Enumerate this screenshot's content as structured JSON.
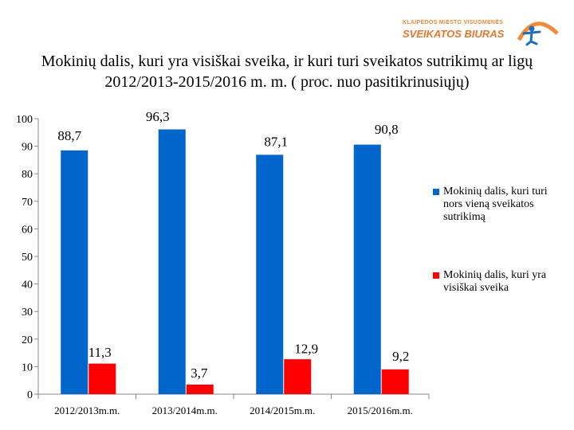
{
  "logo": {
    "line1": "KLAIPĖDOS MIESTO VISUOMENĖS",
    "line2": "SVEIKATOS BIURAS"
  },
  "chart_data": {
    "type": "bar",
    "title": "Mokinių dalis, kuri yra visiškai sveika, ir kuri turi sveikatos sutrikimų ar ligų 2012/2013-2015/2016 m. m. ( proc. nuo pasitikrinusiųjų)",
    "categories": [
      "2012/2013m.m.",
      "2013/2014m.m.",
      "2014/2015m.m.",
      "2015/2016m.m."
    ],
    "series": [
      {
        "name": "Mokinių dalis, kuri turi nors vieną sveikatos sutrikimą",
        "color": "#0066cc",
        "values": [
          88.7,
          96.3,
          87.1,
          90.8
        ],
        "labels": [
          "88,7",
          "96,3",
          "87,1",
          "90,8"
        ]
      },
      {
        "name": "Mokinių dalis, kuri yra visiškai sveika",
        "color": "#ff0000",
        "values": [
          11.3,
          3.7,
          12.9,
          9.2
        ],
        "labels": [
          "11,3",
          "3,7",
          "12,9",
          "9,2"
        ]
      }
    ],
    "ylim": [
      0,
      100
    ],
    "yticks": [
      0,
      10,
      20,
      30,
      40,
      50,
      60,
      70,
      80,
      90,
      100
    ],
    "grid": false,
    "legend": "right"
  }
}
